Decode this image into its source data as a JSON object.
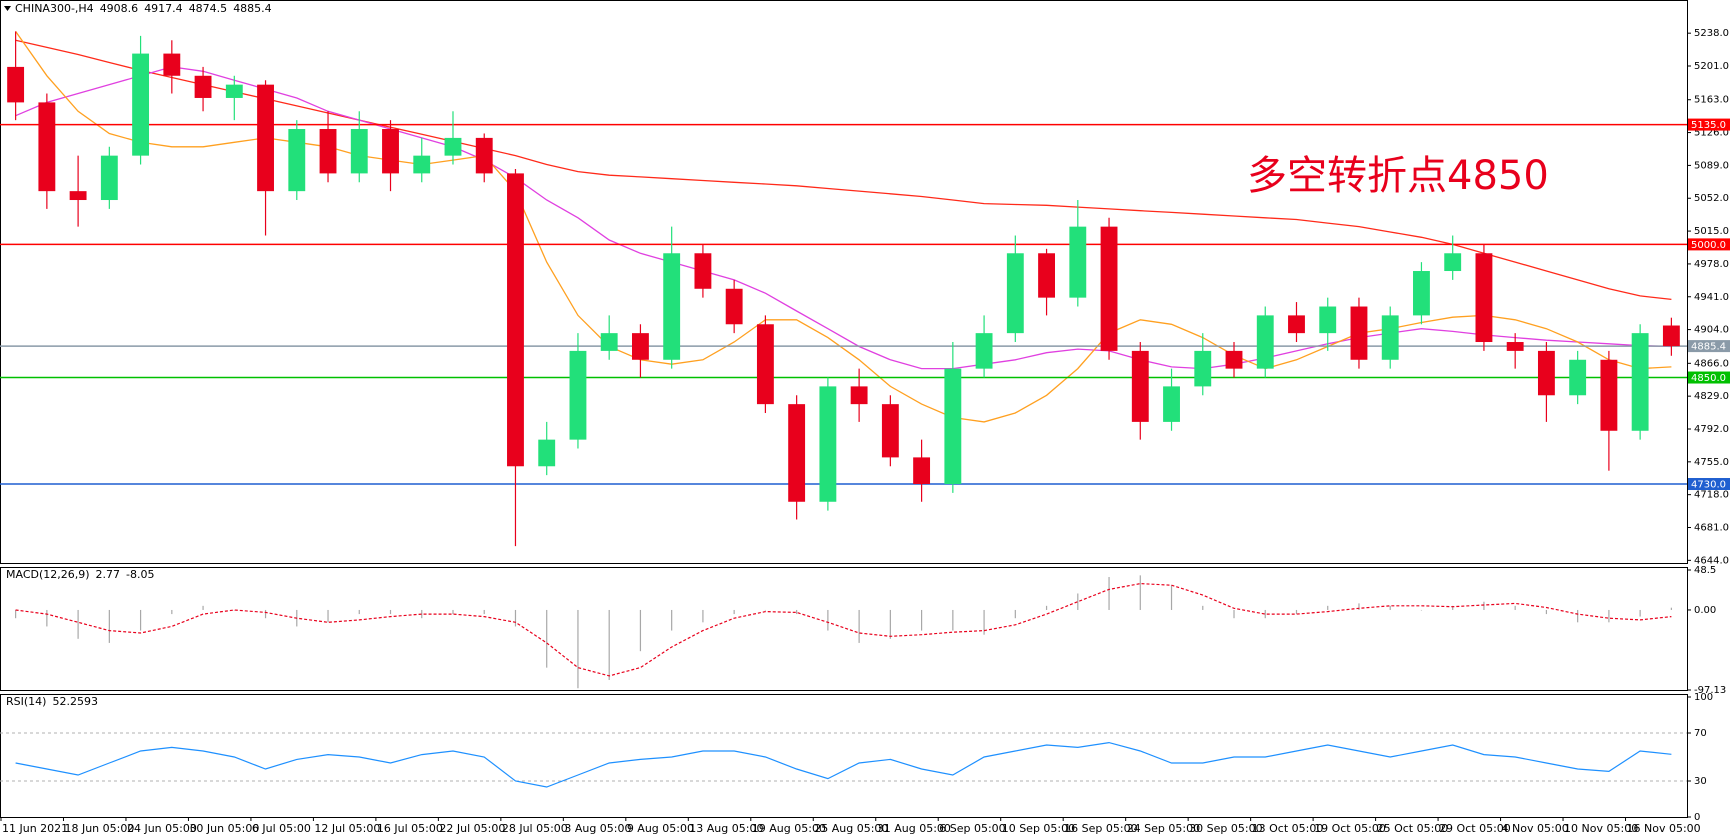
{
  "chart_data": [
    {
      "type": "candlestick",
      "symbol": "CHINA300-,H4",
      "annotation": "多空转折点4850",
      "categories": [
        "11 Jun 2021",
        null,
        "18 Jun 05:00",
        null,
        "24 Jun 05:00",
        null,
        "30 Jun 05:00",
        null,
        "6 Jul 05:00",
        null,
        "12 Jul 05:00",
        null,
        "16 Jul 05:00",
        null,
        "22 Jul 05:00",
        null,
        "28 Jul 05:00",
        null,
        "3 Aug 05:00",
        null,
        "9 Aug 05:00",
        null,
        "13 Aug 05:00",
        null,
        "19 Aug 05:00",
        null,
        "25 Aug 05:00",
        null,
        "31 Aug 05:00",
        null,
        "6 Sep 05:00",
        null,
        "10 Sep 05:00",
        null,
        "16 Sep 05:00",
        null,
        "24 Sep 05:00",
        null,
        "30 Sep 05:00",
        null,
        "13 Oct 05:00",
        null,
        "19 Oct 05:00",
        null,
        "25 Oct 05:00",
        null,
        "29 Oct 05:00",
        null,
        "4 Nov 05:00",
        null,
        "10 Nov 05:00",
        null,
        "16 Nov 05:00",
        null
      ],
      "open": [
        5200,
        5160,
        5060,
        5050,
        5100,
        5215,
        5190,
        5165,
        5180,
        5060,
        5130,
        5080,
        5130,
        5080,
        5100,
        5120,
        5080,
        4750,
        4780,
        4880,
        4900,
        4870,
        4990,
        4950,
        4910,
        4820,
        4710,
        4840,
        4820,
        4760,
        4730,
        4860,
        4900,
        4990,
        4940,
        5020,
        4880,
        4800,
        4840,
        4880,
        4860,
        4920,
        4900,
        4930,
        4870,
        4920,
        4970,
        4990,
        4890,
        4880,
        4830,
        4870,
        4790,
        4908.6
      ],
      "high": [
        5240,
        5170,
        5100,
        5110,
        5235,
        5230,
        5200,
        5190,
        5185,
        5140,
        5150,
        5150,
        5140,
        5120,
        5150,
        5125,
        5085,
        4800,
        4900,
        4920,
        4910,
        5020,
        5000,
        4960,
        4920,
        4830,
        4850,
        4860,
        4830,
        4780,
        4890,
        4920,
        5010,
        4995,
        5050,
        5030,
        4890,
        4860,
        4900,
        4890,
        4930,
        4935,
        4940,
        4940,
        4930,
        4980,
        5010,
        5000,
        4900,
        4890,
        4880,
        4880,
        4910,
        4917.4
      ],
      "low": [
        5140,
        5040,
        5020,
        5040,
        5090,
        5170,
        5150,
        5140,
        5010,
        5050,
        5070,
        5070,
        5060,
        5070,
        5090,
        5070,
        4660,
        4740,
        4770,
        4870,
        4850,
        4860,
        4940,
        4900,
        4810,
        4690,
        4700,
        4800,
        4750,
        4710,
        4720,
        4850,
        4890,
        4920,
        4930,
        4870,
        4780,
        4790,
        4830,
        4850,
        4850,
        4890,
        4880,
        4860,
        4860,
        4910,
        4960,
        4880,
        4860,
        4800,
        4820,
        4745,
        4780,
        4874.5
      ],
      "close": [
        5160,
        5060,
        5050,
        5100,
        5215,
        5190,
        5165,
        5180,
        5060,
        5130,
        5080,
        5130,
        5080,
        5100,
        5120,
        5080,
        4750,
        4780,
        4880,
        4900,
        4870,
        4990,
        4950,
        4910,
        4820,
        4710,
        4840,
        4820,
        4760,
        4730,
        4860,
        4900,
        4990,
        4940,
        5020,
        4880,
        4800,
        4840,
        4880,
        4860,
        4920,
        4900,
        4930,
        4870,
        4920,
        4970,
        4990,
        4890,
        4880,
        4830,
        4870,
        4790,
        4900,
        4885.4
      ],
      "up_color": "#22e07a",
      "down_color": "#e8001c",
      "lines": [
        {
          "color": "#ff2a1a",
          "values": [
            5230,
            5222,
            5214,
            5205,
            5196,
            5188,
            5180,
            5172,
            5164,
            5156,
            5148,
            5140,
            5132,
            5124,
            5116,
            5108,
            5100,
            5090,
            5082,
            5078,
            5076,
            5074,
            5072,
            5070,
            5068,
            5066,
            5063,
            5060,
            5057,
            5054,
            5050,
            5046,
            5045,
            5044,
            5042,
            5040,
            5038,
            5036,
            5034,
            5032,
            5030,
            5028,
            5024,
            5020,
            5014,
            5008,
            5000,
            4990,
            4980,
            4970,
            4960,
            4950,
            4942,
            4938
          ]
        },
        {
          "color": "#e040e0",
          "values": [
            5145,
            5160,
            5170,
            5180,
            5190,
            5200,
            5195,
            5185,
            5175,
            5165,
            5150,
            5140,
            5130,
            5120,
            5110,
            5095,
            5075,
            5050,
            5030,
            5005,
            4990,
            4980,
            4970,
            4960,
            4945,
            4925,
            4905,
            4885,
            4870,
            4860,
            4860,
            4865,
            4870,
            4878,
            4882,
            4880,
            4870,
            4862,
            4860,
            4865,
            4872,
            4880,
            4888,
            4895,
            4900,
            4905,
            4902,
            4898,
            4895,
            4892,
            4890,
            4888,
            4886,
            4885
          ]
        },
        {
          "color": "#ffa020",
          "values": [
            5240,
            5190,
            5150,
            5125,
            5115,
            5110,
            5110,
            5115,
            5120,
            5115,
            5110,
            5100,
            5095,
            5090,
            5095,
            5100,
            5060,
            4980,
            4920,
            4885,
            4870,
            4865,
            4870,
            4890,
            4915,
            4915,
            4895,
            4870,
            4840,
            4820,
            4805,
            4800,
            4810,
            4830,
            4860,
            4900,
            4915,
            4910,
            4895,
            4875,
            4860,
            4870,
            4885,
            4900,
            4905,
            4912,
            4918,
            4920,
            4915,
            4905,
            4890,
            4870,
            4860,
            4862
          ]
        }
      ],
      "hlines": [
        {
          "value": 5135,
          "label": "5135.0",
          "color": "#ff0000"
        },
        {
          "value": 5000,
          "label": "5000.0",
          "color": "#ff0000"
        },
        {
          "value": 4885.4,
          "color": "#8a9aa8"
        },
        {
          "value": 4850,
          "label": "4850.0",
          "color": "#00c000"
        },
        {
          "value": 4730,
          "label": "4730.0",
          "color": "#1f5fd0"
        }
      ],
      "ylim": [
        4641,
        5272
      ],
      "yticks": [
        {
          "value": 5238,
          "label": "5238.0"
        },
        {
          "value": 5201,
          "label": "5201.0"
        },
        {
          "value": 5163,
          "label": "5163.0"
        },
        {
          "value": 5126,
          "label": "5126.0"
        },
        {
          "value": 5089,
          "label": "5089.0"
        },
        {
          "value": 5052,
          "label": "5052.0"
        },
        {
          "value": 5015,
          "label": "5015.0"
        },
        {
          "value": 4978,
          "label": "4978.0"
        },
        {
          "value": 4941,
          "label": "4941.0"
        },
        {
          "value": 4904,
          "label": "4904.0"
        },
        {
          "value": 4866,
          "label": "4866.0"
        },
        {
          "value": 4829,
          "label": "4829.0"
        },
        {
          "value": 4792,
          "label": "4792.0"
        },
        {
          "value": 4755,
          "label": "4755.0"
        },
        {
          "value": 4718,
          "label": "4718.0"
        },
        {
          "value": 4681,
          "label": "4681.0"
        },
        {
          "value": 4644,
          "label": "4644.0"
        }
      ]
    },
    {
      "type": "macd",
      "title": "MACD(12,26,9)",
      "values": [
        -10,
        -20,
        -35,
        -40,
        -25,
        -5,
        5,
        0,
        -10,
        -20,
        -15,
        -5,
        -5,
        -10,
        -5,
        -5,
        -20,
        -70,
        -95,
        -85,
        -50,
        -25,
        -15,
        -5,
        0,
        -5,
        -25,
        -40,
        -35,
        -25,
        -25,
        -30,
        -10,
        5,
        20,
        40,
        42,
        30,
        5,
        -10,
        -10,
        -5,
        5,
        8,
        5,
        0,
        5,
        10,
        5,
        -5,
        -15,
        -15,
        -8,
        2.77
      ],
      "signal": [
        0,
        -5,
        -15,
        -25,
        -28,
        -20,
        -5,
        0,
        -3,
        -10,
        -15,
        -12,
        -8,
        -5,
        -5,
        -8,
        -15,
        -40,
        -70,
        -80,
        -70,
        -45,
        -25,
        -10,
        -2,
        -3,
        -15,
        -28,
        -32,
        -30,
        -27,
        -25,
        -18,
        -5,
        10,
        25,
        32,
        30,
        18,
        2,
        -5,
        -5,
        -2,
        2,
        5,
        5,
        4,
        6,
        8,
        3,
        -5,
        -10,
        -12,
        -8.05
      ],
      "color": "#a8a8a8",
      "signal_color": "#e8001c",
      "ylim": [
        -97.13,
        48.5
      ],
      "yticks": [
        48.5,
        {
          "value": 0,
          "label": "0.00"
        },
        -97.13
      ]
    },
    {
      "type": "rsi",
      "title": "RSI(14)",
      "values": [
        45,
        40,
        35,
        45,
        55,
        58,
        55,
        50,
        40,
        48,
        52,
        50,
        45,
        52,
        55,
        50,
        30,
        25,
        35,
        45,
        48,
        50,
        55,
        55,
        50,
        40,
        32,
        45,
        48,
        40,
        35,
        50,
        55,
        60,
        58,
        62,
        55,
        45,
        45,
        50,
        50,
        55,
        60,
        55,
        50,
        55,
        60,
        52,
        50,
        45,
        40,
        38,
        55,
        52.2593
      ],
      "color": "#1e90ff",
      "level_lines": true,
      "ylim": [
        0,
        100
      ],
      "yticks": [
        100,
        70,
        30,
        0
      ]
    }
  ]
}
